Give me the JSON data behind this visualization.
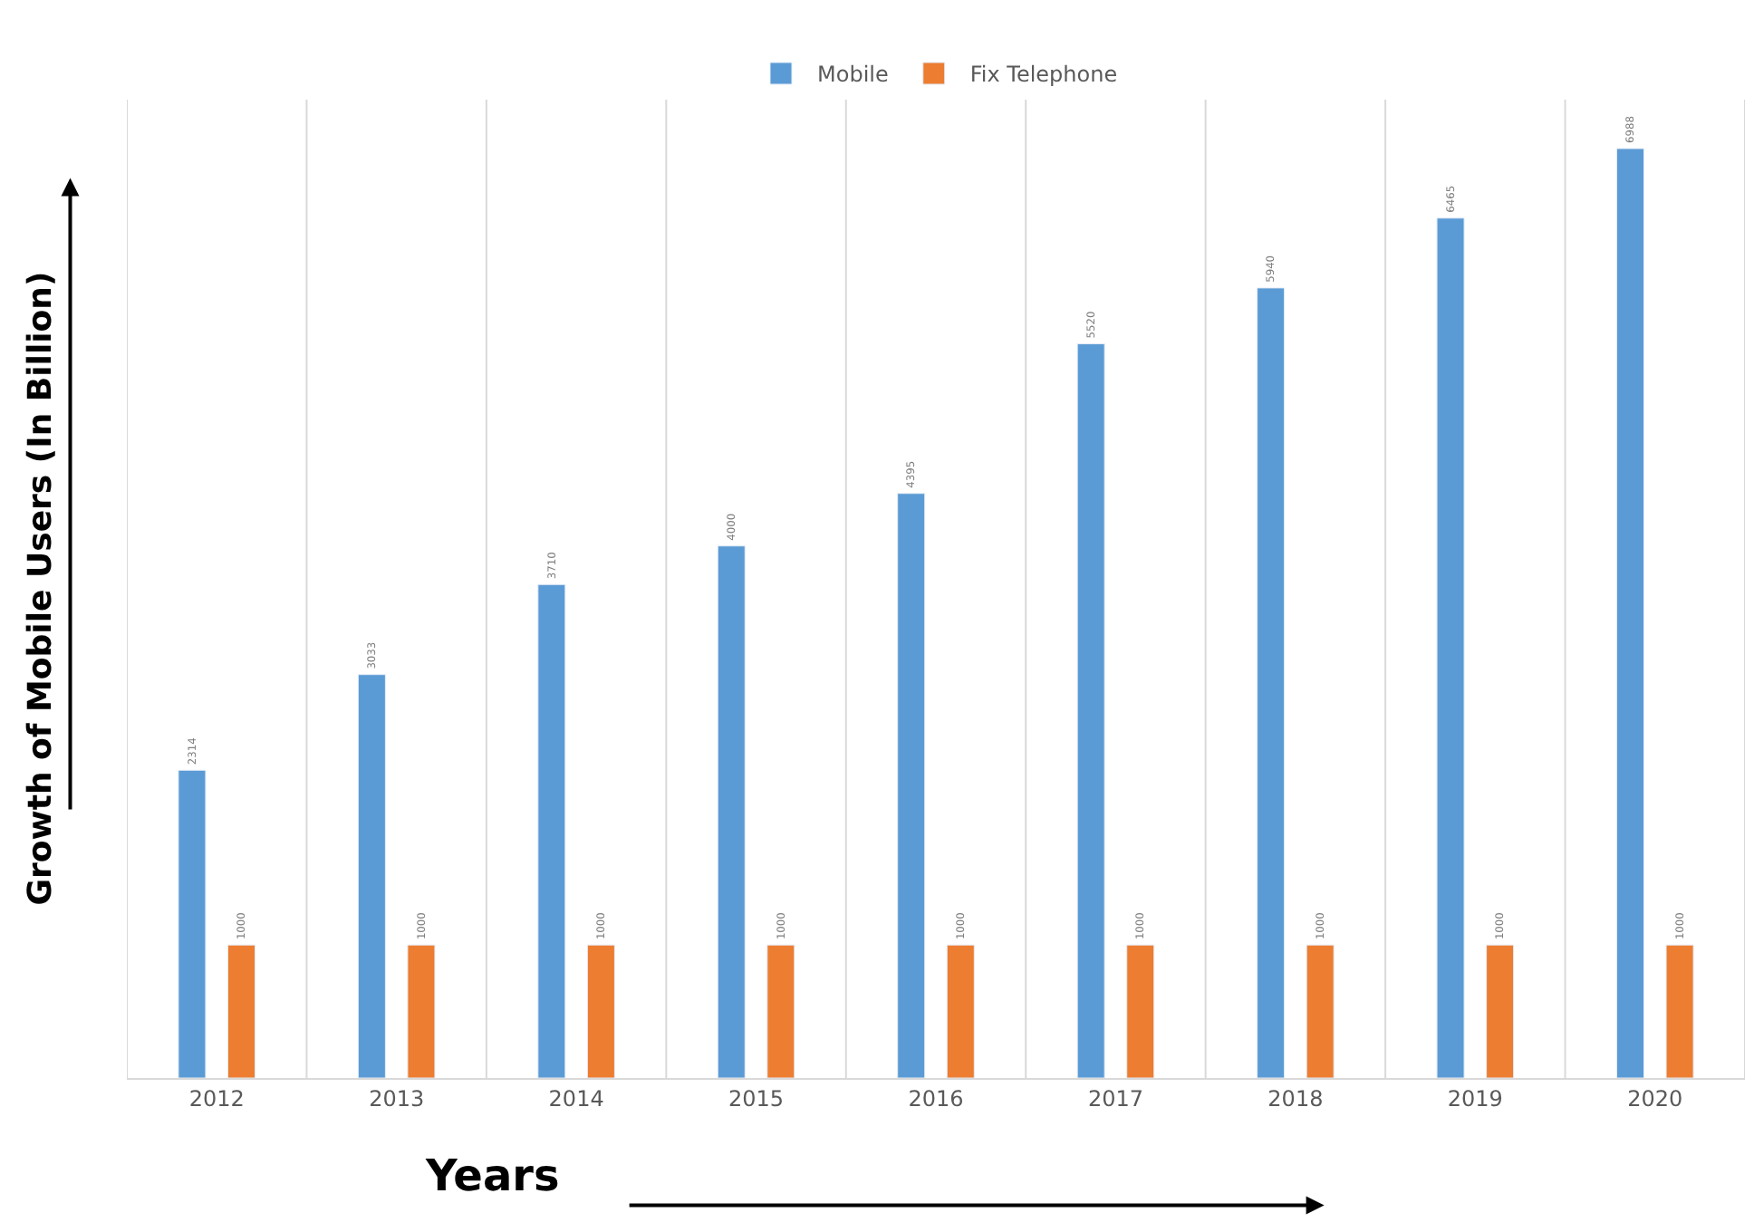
{
  "chart_data": {
    "type": "bar",
    "xlabel": "Years",
    "ylabel": "Growth of Mobile Users (In Billion)",
    "categories": [
      "2012",
      "2013",
      "2014",
      "2015",
      "2016",
      "2017",
      "2018",
      "2019",
      "2020"
    ],
    "series": [
      {
        "name": "Mobile",
        "color": "#5b9bd5",
        "values": [
          2314,
          3033,
          3710,
          4000,
          4395,
          5520,
          5940,
          6465,
          6988
        ]
      },
      {
        "name": "Fix Telephone",
        "color": "#ed7d31",
        "values": [
          1000,
          1000,
          1000,
          1000,
          1000,
          1000,
          1000,
          1000,
          1000
        ]
      }
    ],
    "data_labels": true,
    "grid": "x",
    "legend": "top"
  }
}
